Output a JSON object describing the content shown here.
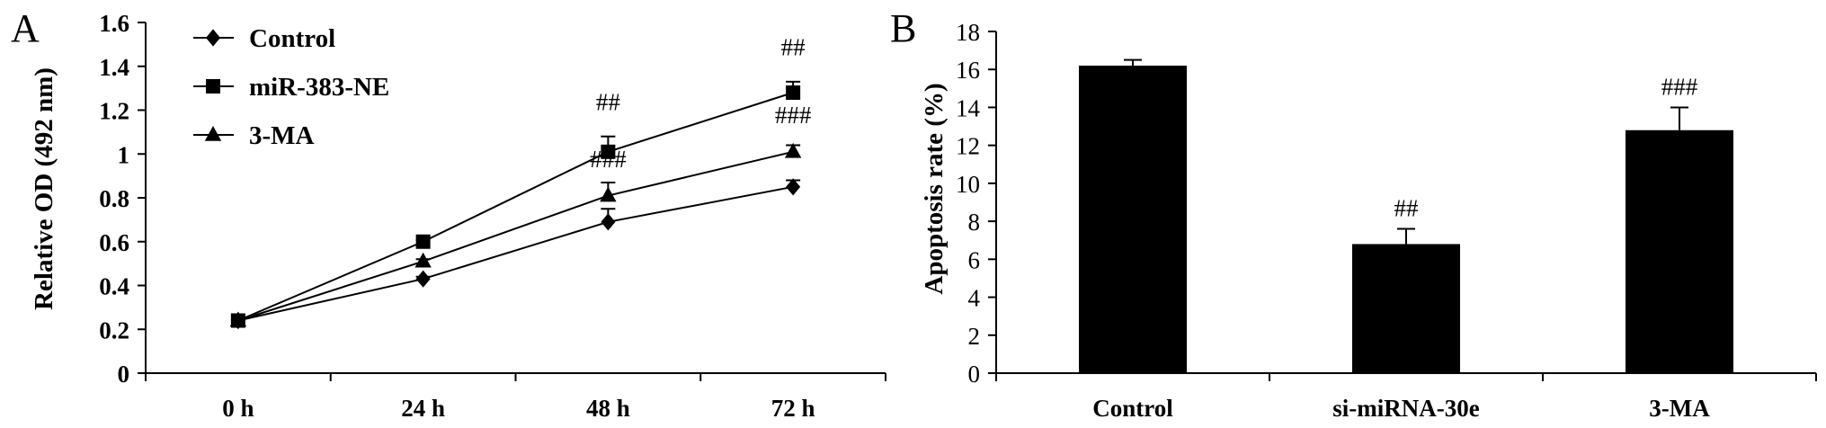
{
  "chart_data": [
    {
      "panel": "A",
      "type": "line",
      "ylabel": "Relative OD (492 nm)",
      "xlabel": "",
      "categories": [
        "0 h",
        "24 h",
        "48 h",
        "72 h"
      ],
      "ylim": [
        0,
        1.6
      ],
      "yticks": [
        "0",
        "0.2",
        "0.4",
        "0.6",
        "0.8",
        "1",
        "1.2",
        "1.4",
        "1.6"
      ],
      "legend_position": "top-left",
      "series": [
        {
          "name": "Control",
          "marker": "diamond",
          "values": [
            0.24,
            0.43,
            0.69,
            0.85
          ],
          "errors": [
            0,
            0.01,
            0.06,
            0.03
          ]
        },
        {
          "name": "miR-383-NE",
          "marker": "square",
          "values": [
            0.24,
            0.6,
            1.01,
            1.28
          ],
          "errors": [
            0,
            0.01,
            0.07,
            0.05
          ]
        },
        {
          "name": "3-MA",
          "marker": "triangle",
          "values": [
            0.24,
            0.51,
            0.81,
            1.01
          ],
          "errors": [
            0,
            0.01,
            0.06,
            0.03
          ]
        }
      ],
      "annotations": [
        {
          "text": "##",
          "category": "48 h",
          "y": 1.2
        },
        {
          "text": "###",
          "category": "48 h",
          "y": 0.94
        },
        {
          "text": "##",
          "category": "72 h",
          "y": 1.45
        },
        {
          "text": "###",
          "category": "72 h",
          "y": 1.14
        }
      ]
    },
    {
      "panel": "B",
      "type": "bar",
      "ylabel": "Apoptosis rate (%)",
      "xlabel": "",
      "categories": [
        "Control",
        "si-miRNA-30e",
        "3-MA"
      ],
      "values": [
        16.2,
        6.8,
        12.8
      ],
      "errors": [
        0.3,
        0.8,
        1.2
      ],
      "ylim": [
        0,
        18
      ],
      "yticks": [
        "0",
        "2",
        "4",
        "6",
        "8",
        "10",
        "12",
        "14",
        "16",
        "18"
      ],
      "annotations": [
        {
          "text": "",
          "category": "Control"
        },
        {
          "text": "##",
          "category": "si-miRNA-30e"
        },
        {
          "text": "###",
          "category": "3-MA"
        }
      ]
    }
  ],
  "colors": {
    "ink": "#000000",
    "background": "#ffffff"
  }
}
